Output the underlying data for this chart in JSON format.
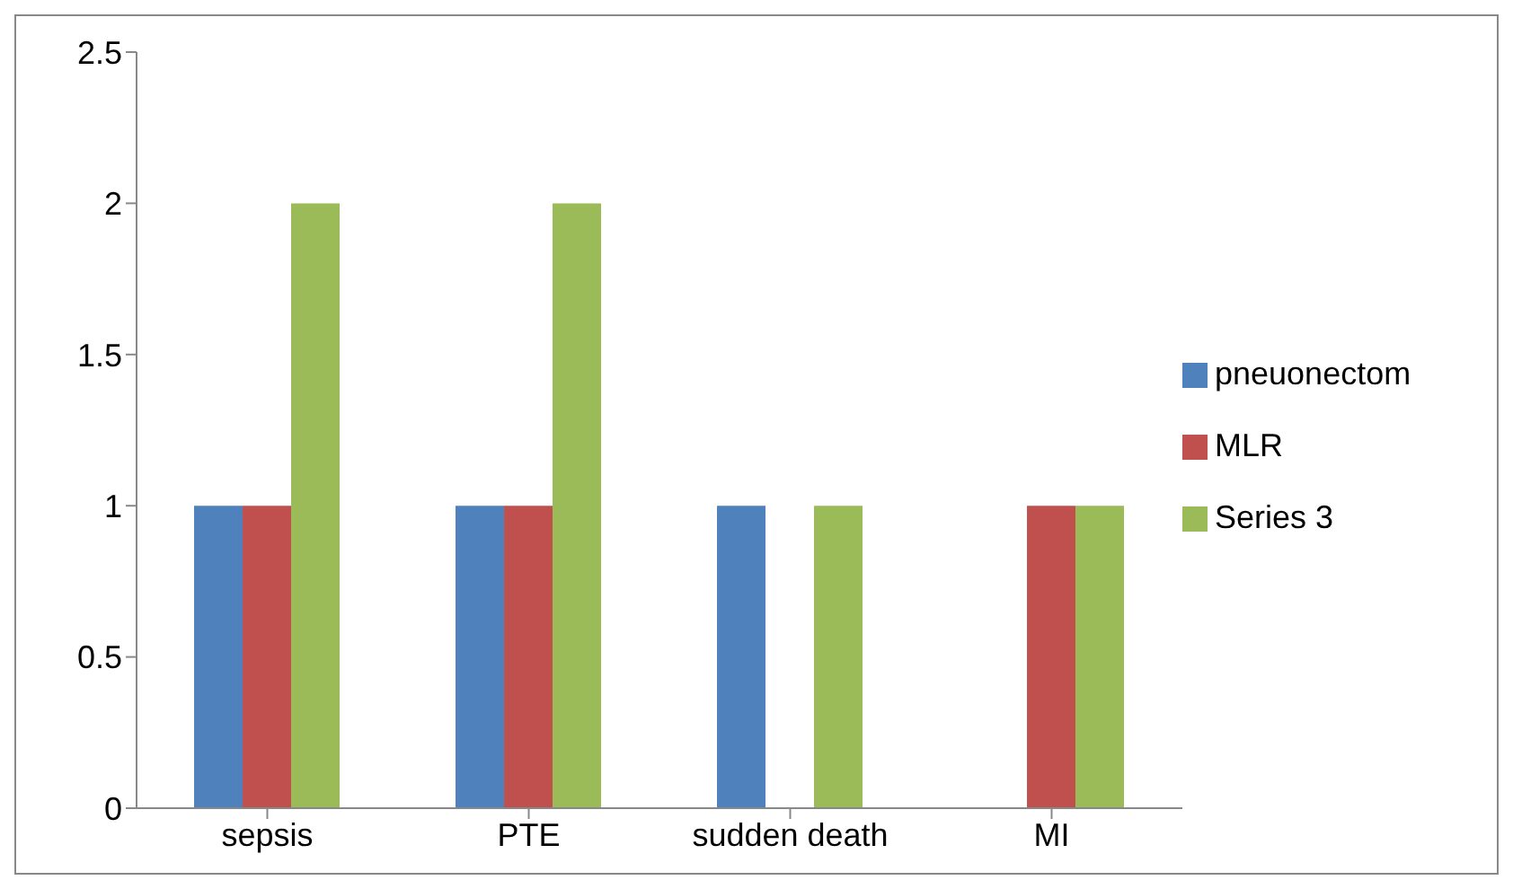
{
  "chart_data": {
    "type": "bar",
    "categories": [
      "sepsis",
      "PTE",
      "sudden death",
      "MI"
    ],
    "series": [
      {
        "name": "pneuonectom",
        "color": "#4f81bd",
        "values": [
          1,
          1,
          1,
          0
        ]
      },
      {
        "name": "MLR",
        "color": "#c0504d",
        "values": [
          1,
          1,
          0,
          1
        ]
      },
      {
        "name": "Series 3",
        "color": "#9bbb59",
        "values": [
          2,
          2,
          1,
          1
        ]
      }
    ],
    "ylim": [
      0,
      2.5
    ],
    "yticks": [
      0,
      0.5,
      1,
      1.5,
      2,
      2.5
    ],
    "grid": false,
    "legend": "right"
  }
}
